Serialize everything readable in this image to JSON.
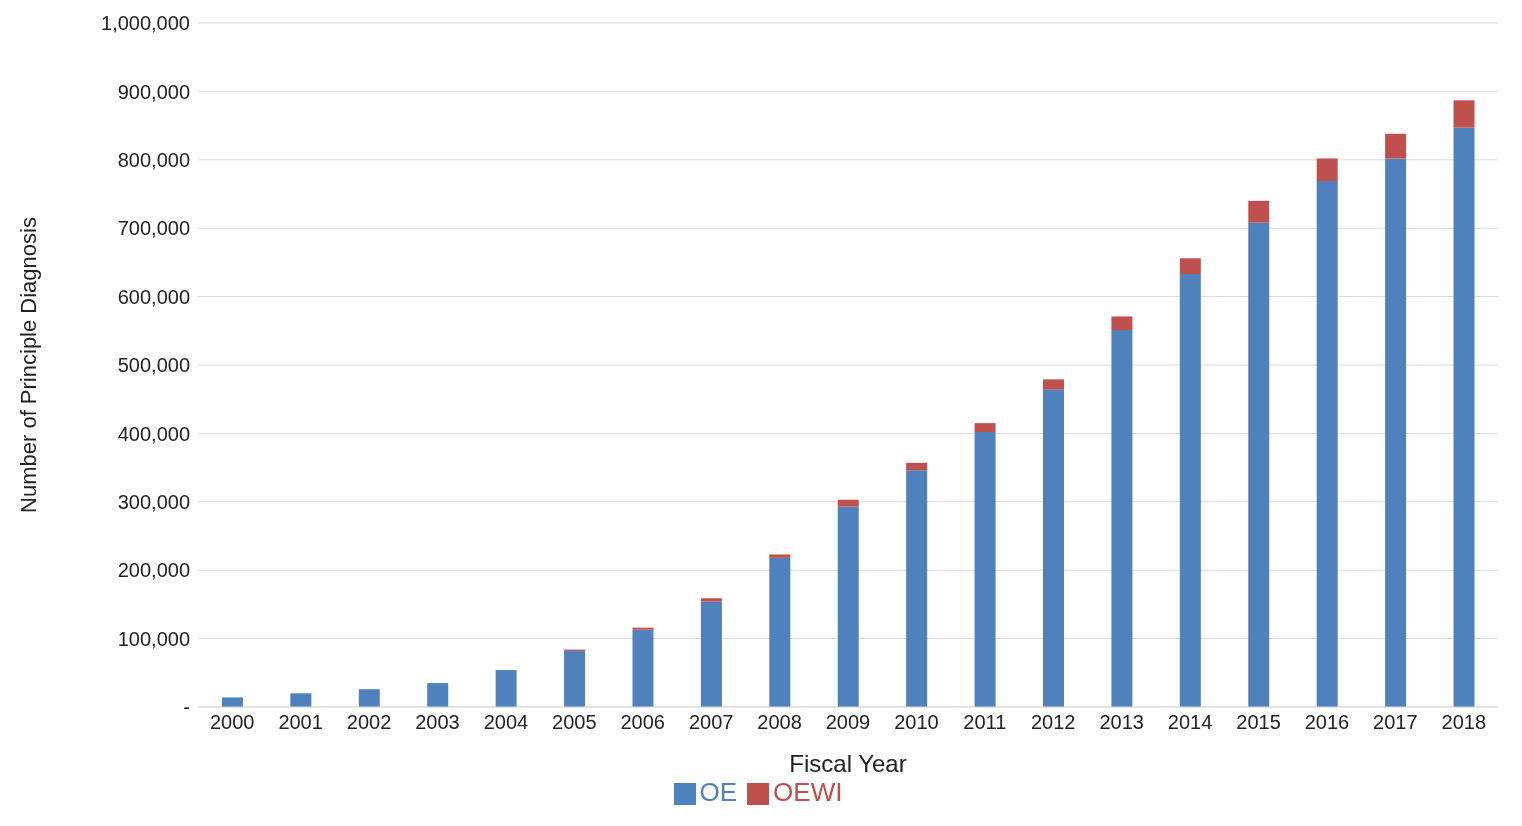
{
  "chart_data": {
    "type": "bar",
    "stacked": true,
    "xlabel": "Fiscal Year",
    "ylabel": "Number of Principle Diagnosis",
    "categories": [
      "2000",
      "2001",
      "2002",
      "2003",
      "2004",
      "2005",
      "2006",
      "2007",
      "2008",
      "2009",
      "2010",
      "2011",
      "2012",
      "2013",
      "2014",
      "2015",
      "2016",
      "2017",
      "2018"
    ],
    "series": [
      {
        "name": "OE",
        "color": "#4f81bd",
        "values": [
          14000,
          20000,
          26000,
          35000,
          54000,
          82000,
          113000,
          154000,
          218000,
          293000,
          346000,
          402000,
          464000,
          551000,
          633000,
          708000,
          769000,
          802000,
          847000
        ]
      },
      {
        "name": "OEWI",
        "color": "#c0504d",
        "values": [
          0,
          0,
          0,
          0,
          0,
          2000,
          3000,
          5000,
          5000,
          10000,
          11000,
          13000,
          15000,
          20000,
          23000,
          32000,
          33000,
          36000,
          40000
        ]
      }
    ],
    "ylim": [
      0,
      1000000
    ],
    "yticks": [
      {
        "value": 0,
        "label": "-"
      },
      {
        "value": 100000,
        "label": "100,000"
      },
      {
        "value": 200000,
        "label": "200,000"
      },
      {
        "value": 300000,
        "label": "300,000"
      },
      {
        "value": 400000,
        "label": "400,000"
      },
      {
        "value": 500000,
        "label": "500,000"
      },
      {
        "value": 600000,
        "label": "600,000"
      },
      {
        "value": 700000,
        "label": "700,000"
      },
      {
        "value": 800000,
        "label": "800,000"
      },
      {
        "value": 900000,
        "label": "900,000"
      },
      {
        "value": 1000000,
        "label": "1,000,000"
      }
    ],
    "grid": "y",
    "legend": "bottom"
  }
}
